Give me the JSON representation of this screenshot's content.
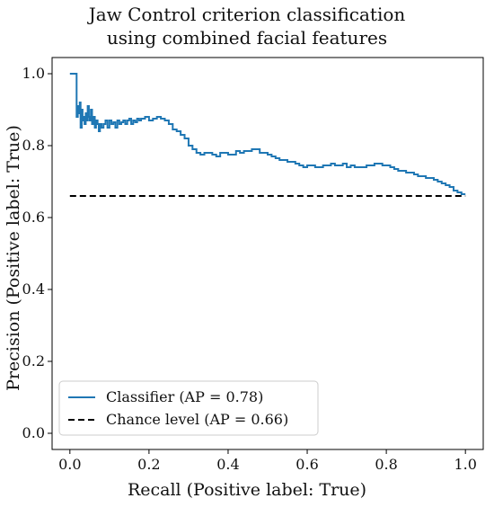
{
  "chart_data": {
    "type": "line",
    "title_lines": [
      "Jaw Control criterion classification",
      "using combined facial features"
    ],
    "xlabel": "Recall (Positive label: True)",
    "ylabel": "Precision (Positive label: True)",
    "xlim": [
      0.0,
      1.0
    ],
    "ylim": [
      0.0,
      1.0
    ],
    "xticks": [
      "0.0",
      "0.2",
      "0.4",
      "0.6",
      "0.8",
      "1.0"
    ],
    "yticks": [
      "0.0",
      "0.2",
      "0.4",
      "0.6",
      "0.8",
      "1.0"
    ],
    "grid": false,
    "legend_position": "lower-left",
    "series": [
      {
        "name": "Classifier (AP = 0.78)",
        "color": "#1f77b4",
        "style": "solid",
        "x": [
          0.0,
          0.017,
          0.017,
          0.02,
          0.022,
          0.025,
          0.027,
          0.03,
          0.032,
          0.035,
          0.037,
          0.04,
          0.042,
          0.045,
          0.048,
          0.05,
          0.053,
          0.056,
          0.06,
          0.063,
          0.066,
          0.07,
          0.073,
          0.076,
          0.08,
          0.085,
          0.09,
          0.095,
          0.1,
          0.105,
          0.11,
          0.115,
          0.12,
          0.125,
          0.13,
          0.135,
          0.14,
          0.145,
          0.15,
          0.155,
          0.16,
          0.165,
          0.17,
          0.175,
          0.18,
          0.19,
          0.2,
          0.21,
          0.22,
          0.23,
          0.24,
          0.25,
          0.26,
          0.27,
          0.28,
          0.29,
          0.3,
          0.31,
          0.32,
          0.33,
          0.34,
          0.35,
          0.36,
          0.37,
          0.38,
          0.39,
          0.4,
          0.41,
          0.42,
          0.43,
          0.44,
          0.45,
          0.46,
          0.47,
          0.48,
          0.49,
          0.5,
          0.51,
          0.52,
          0.53,
          0.54,
          0.55,
          0.56,
          0.57,
          0.58,
          0.59,
          0.6,
          0.61,
          0.62,
          0.63,
          0.64,
          0.65,
          0.66,
          0.67,
          0.68,
          0.69,
          0.7,
          0.71,
          0.72,
          0.73,
          0.74,
          0.75,
          0.76,
          0.77,
          0.78,
          0.79,
          0.8,
          0.81,
          0.82,
          0.83,
          0.84,
          0.85,
          0.86,
          0.87,
          0.88,
          0.89,
          0.9,
          0.91,
          0.92,
          0.93,
          0.94,
          0.95,
          0.96,
          0.97,
          0.98,
          0.99,
          1.0
        ],
        "y": [
          1.0,
          1.0,
          0.88,
          0.91,
          0.89,
          0.92,
          0.85,
          0.9,
          0.87,
          0.88,
          0.86,
          0.89,
          0.87,
          0.91,
          0.88,
          0.87,
          0.9,
          0.86,
          0.88,
          0.85,
          0.87,
          0.86,
          0.84,
          0.86,
          0.85,
          0.86,
          0.87,
          0.85,
          0.87,
          0.86,
          0.865,
          0.85,
          0.87,
          0.86,
          0.865,
          0.87,
          0.86,
          0.87,
          0.875,
          0.86,
          0.87,
          0.865,
          0.875,
          0.87,
          0.875,
          0.88,
          0.87,
          0.875,
          0.88,
          0.875,
          0.87,
          0.86,
          0.845,
          0.84,
          0.83,
          0.82,
          0.8,
          0.79,
          0.78,
          0.775,
          0.78,
          0.78,
          0.775,
          0.77,
          0.78,
          0.78,
          0.775,
          0.775,
          0.785,
          0.78,
          0.785,
          0.785,
          0.79,
          0.79,
          0.78,
          0.78,
          0.775,
          0.77,
          0.765,
          0.76,
          0.76,
          0.755,
          0.755,
          0.75,
          0.745,
          0.74,
          0.745,
          0.745,
          0.74,
          0.74,
          0.745,
          0.745,
          0.75,
          0.745,
          0.745,
          0.75,
          0.74,
          0.745,
          0.74,
          0.74,
          0.74,
          0.745,
          0.745,
          0.75,
          0.75,
          0.745,
          0.745,
          0.74,
          0.735,
          0.73,
          0.73,
          0.725,
          0.725,
          0.72,
          0.715,
          0.715,
          0.71,
          0.71,
          0.705,
          0.7,
          0.695,
          0.69,
          0.685,
          0.675,
          0.67,
          0.665,
          0.665
        ]
      },
      {
        "name": "Chance level (AP = 0.66)",
        "color": "#000000",
        "style": "dashed",
        "x": [
          0.0,
          1.0
        ],
        "y": [
          0.66,
          0.66
        ]
      }
    ]
  }
}
